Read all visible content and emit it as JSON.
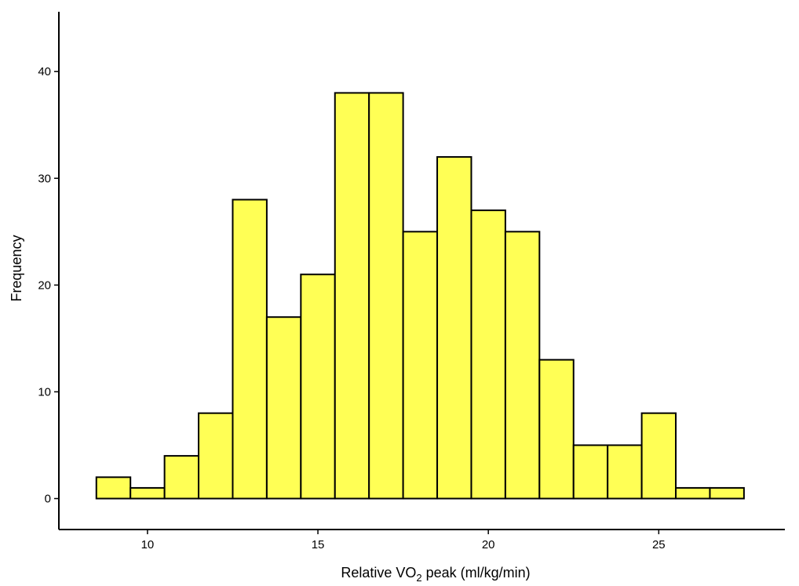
{
  "chart_data": {
    "type": "bar",
    "subtype": "histogram",
    "bin_width": 1,
    "bins": [
      {
        "x0": 8.5,
        "x1": 9.5,
        "count": 2
      },
      {
        "x0": 9.5,
        "x1": 10.5,
        "count": 1
      },
      {
        "x0": 10.5,
        "x1": 11.5,
        "count": 4
      },
      {
        "x0": 11.5,
        "x1": 12.5,
        "count": 8
      },
      {
        "x0": 12.5,
        "x1": 13.5,
        "count": 28
      },
      {
        "x0": 13.5,
        "x1": 14.5,
        "count": 17
      },
      {
        "x0": 14.5,
        "x1": 15.5,
        "count": 21
      },
      {
        "x0": 15.5,
        "x1": 16.5,
        "count": 38
      },
      {
        "x0": 16.5,
        "x1": 17.5,
        "count": 38
      },
      {
        "x0": 17.5,
        "x1": 18.5,
        "count": 25
      },
      {
        "x0": 18.5,
        "x1": 19.5,
        "count": 32
      },
      {
        "x0": 19.5,
        "x1": 20.5,
        "count": 27
      },
      {
        "x0": 20.5,
        "x1": 21.5,
        "count": 25
      },
      {
        "x0": 21.5,
        "x1": 22.5,
        "count": 13
      },
      {
        "x0": 22.5,
        "x1": 23.5,
        "count": 5
      },
      {
        "x0": 23.5,
        "x1": 24.5,
        "count": 5
      },
      {
        "x0": 24.5,
        "x1": 25.5,
        "count": 8
      },
      {
        "x0": 25.5,
        "x1": 26.5,
        "count": 1
      },
      {
        "x0": 26.5,
        "x1": 27.5,
        "count": 1
      }
    ],
    "xlabel": {
      "main": "Relative VO",
      "sub": "2",
      "rest": " peak (ml/kg/min)"
    },
    "ylabel": "Frequency",
    "xticks": [
      10,
      15,
      20,
      25
    ],
    "yticks": [
      0,
      10,
      20,
      30,
      40
    ],
    "xlim": [
      7.4,
      28.7
    ],
    "ylim": [
      -2.9,
      45.6
    ],
    "grid": false,
    "bar_color": "#ffff55",
    "edge_color": "#000000"
  }
}
